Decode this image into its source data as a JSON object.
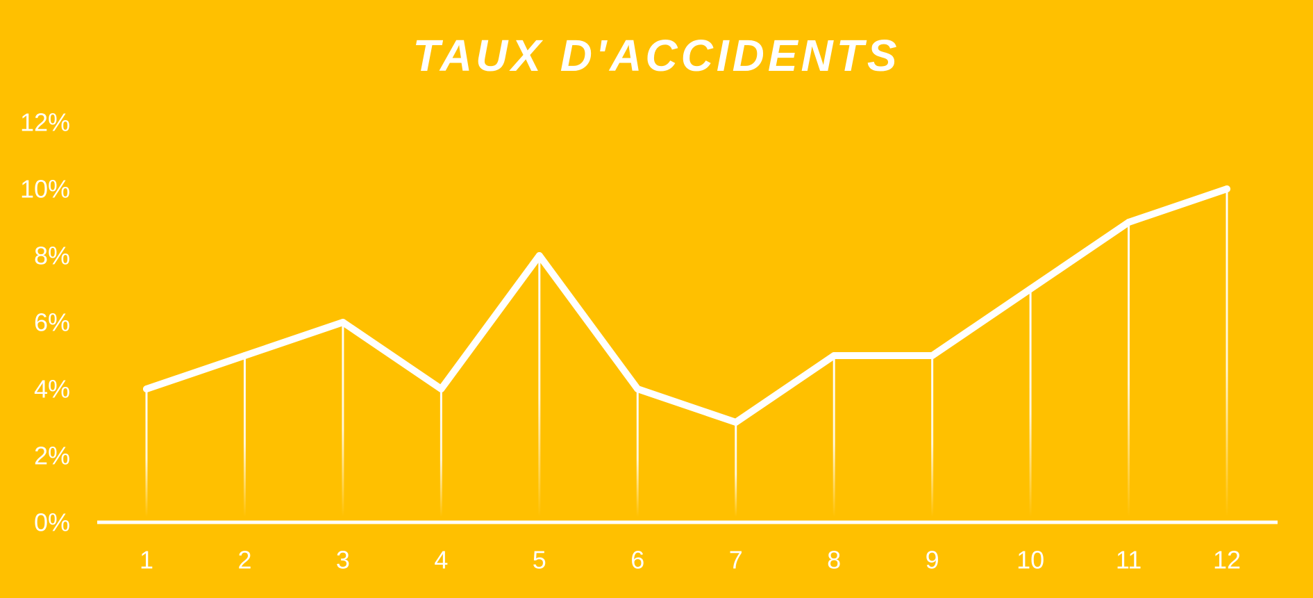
{
  "chart_data": {
    "type": "line",
    "title": "TAUX D'ACCIDENTS",
    "xlabel": "",
    "ylabel": "",
    "categories": [
      "1",
      "2",
      "3",
      "4",
      "5",
      "6",
      "7",
      "8",
      "9",
      "10",
      "11",
      "12"
    ],
    "series": [
      {
        "values": [
          4,
          5,
          6,
          4,
          8,
          4,
          3,
          5,
          5,
          7,
          9,
          10
        ]
      }
    ],
    "ylim": [
      0,
      12
    ],
    "yticks": [
      0,
      2,
      4,
      6,
      8,
      10,
      12
    ],
    "ytick_labels": [
      "0%",
      "2%",
      "4%",
      "6%",
      "8%",
      "10%",
      "12%"
    ],
    "grid": false,
    "drop_lines": true,
    "legend": "none",
    "colors": {
      "background": "#FFC000",
      "line": "#FFFFFF",
      "text": "#FFFFFF"
    }
  }
}
